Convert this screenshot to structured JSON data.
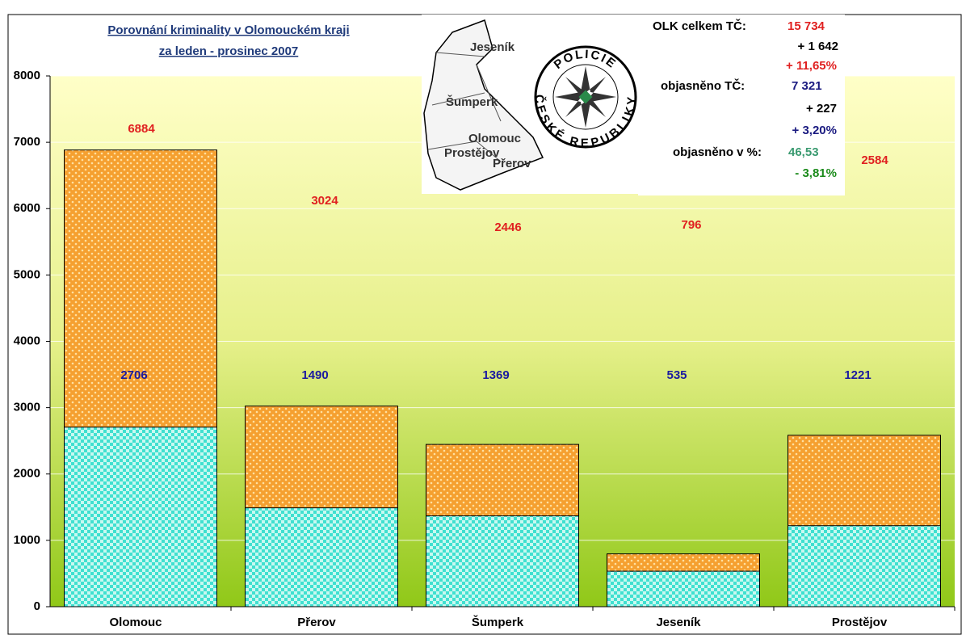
{
  "chart_data": {
    "type": "bar",
    "categories": [
      "Olomouc",
      "Přerov",
      "Šumperk",
      "Jeseník",
      "Prostějov"
    ],
    "series": [
      {
        "color": "#f5a030",
        "label_color": "#e02020",
        "values": [
          6884,
          3024,
          2446,
          796,
          2584
        ]
      },
      {
        "color": "#40e0d0",
        "label_color": "#1a1aa0",
        "values": [
          2706,
          1490,
          1369,
          535,
          1221
        ]
      }
    ],
    "ylim": [
      0,
      8000
    ],
    "yticks": [
      0,
      1000,
      2000,
      3000,
      4000,
      5000,
      6000,
      7000,
      8000
    ],
    "grid": true,
    "annotation": {
      "color": "#1f3a7a",
      "lines": [
        "Porovnání kriminality v Olomouckém kraji",
        "za leden - prosinec 2007"
      ]
    },
    "info": [
      {
        "text": "OLK celkem TČ:",
        "color": "#000000"
      },
      {
        "text": "15 734",
        "color": "#e02020"
      },
      {
        "text": "+ 1 642",
        "color": "#000000"
      },
      {
        "text": "+ 11,65%",
        "color": "#e02020"
      },
      {
        "text": "objasněno TČ:",
        "color": "#000000"
      },
      {
        "text": "7 321",
        "color": "#1a1a80"
      },
      {
        "text": "+ 227",
        "color": "#000000"
      },
      {
        "text": "+ 3,20%",
        "color": "#1a1a80"
      },
      {
        "text": "objasněno v %:",
        "color": "#000000"
      },
      {
        "text": "46,53",
        "color": "#3a9a70"
      },
      {
        "text": "- 3,81%",
        "color": "#1a8a1a"
      }
    ],
    "map_labels": [
      "Jeseník",
      "Šumperk",
      "Olomouc",
      "Prostějov",
      "Přerov"
    ],
    "logo": [
      "POLICIE",
      "ČESKÉ REPUBLIKY"
    ]
  }
}
